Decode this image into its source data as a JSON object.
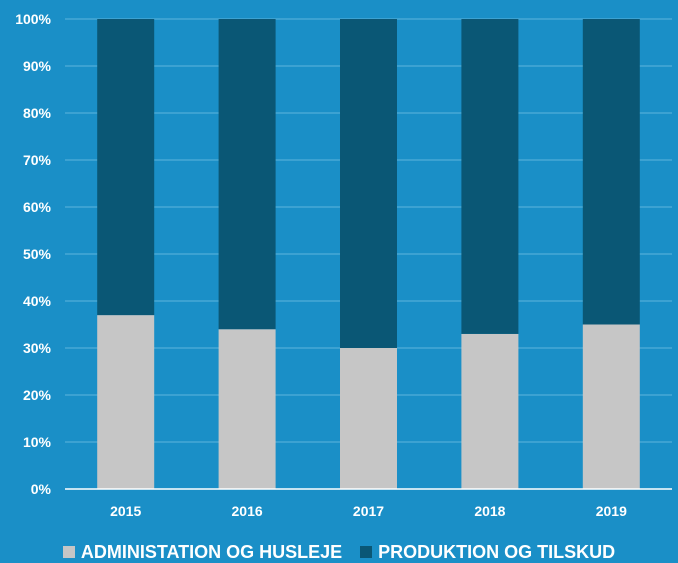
{
  "colors": {
    "background": "#1a8fc7",
    "gridline": "#5fb6de",
    "axis": "#ffffff",
    "text": "#ffffff"
  },
  "chart_data": {
    "type": "bar",
    "stacked": true,
    "percent_stacked": true,
    "categories": [
      "2015",
      "2016",
      "2017",
      "2018",
      "2019"
    ],
    "series": [
      {
        "name": "ADMINISTATION OG HUSLEJE",
        "color": "#c6c6c6",
        "values": [
          37,
          34,
          30,
          33,
          35
        ]
      },
      {
        "name": "PRODUKTION OG TILSKUD",
        "color": "#0a5775",
        "values": [
          63,
          66,
          70,
          67,
          65
        ]
      }
    ],
    "yticks": [
      "0%",
      "10%",
      "20%",
      "30%",
      "40%",
      "50%",
      "60%",
      "70%",
      "80%",
      "90%",
      "100%"
    ],
    "ylim": [
      0,
      100
    ],
    "grid": true,
    "legend_position": "bottom"
  }
}
